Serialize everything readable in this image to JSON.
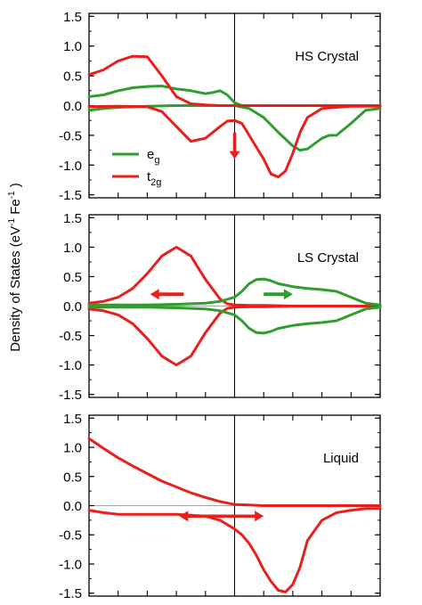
{
  "ylabel_parts": {
    "lead": "Density of States (eV",
    "exp1": "-1",
    "mid": " Fe",
    "exp2": "-1",
    "tail": ")"
  },
  "colors": {
    "eg": "#2f9e2f",
    "t2g": "#e8201c",
    "axis": "#000000"
  },
  "legend": {
    "panel": 0,
    "entries": [
      {
        "key": "eg",
        "base": "e",
        "sub": "g"
      },
      {
        "key": "t2g",
        "base": "t",
        "sub": "2g"
      }
    ]
  },
  "chart_data": [
    {
      "type": "line",
      "title": "HS Crystal",
      "ylim": [
        -1.55,
        1.55
      ],
      "yticks": [
        1.5,
        1.0,
        0.5,
        0.0,
        -0.5,
        -1.0,
        -1.5
      ],
      "ytick_labels": [
        "1.5",
        "1.0",
        "0.5",
        "0.0",
        "-0.5",
        "-1.0",
        "-1.5"
      ],
      "xlim": [
        -10,
        10
      ],
      "vline_x": 0,
      "series": [
        {
          "name": "eg",
          "color_key": "eg",
          "x": [
            -10,
            -9,
            -8,
            -7,
            -6,
            -5,
            -4,
            -3,
            -2,
            -1.5,
            -1,
            -0.5,
            0,
            0.5,
            1,
            2,
            3,
            4,
            5,
            5.5,
            6,
            7,
            8,
            9,
            10
          ],
          "y": [
            0.15,
            0.18,
            0.25,
            0.3,
            0.32,
            0.33,
            0.28,
            0.25,
            0.2,
            0.22,
            0.25,
            0.18,
            0.05,
            0,
            0,
            0,
            0,
            0,
            0,
            0,
            0,
            0,
            0,
            0,
            0
          ]
        },
        {
          "name": "eg",
          "color_key": "eg",
          "x": [
            -10,
            -9,
            -8,
            -6,
            -4,
            -2,
            0,
            1,
            2,
            3,
            4,
            4.5,
            5,
            6,
            6.5,
            7,
            8,
            9,
            10
          ],
          "y": [
            -0.08,
            -0.05,
            -0.03,
            -0.01,
            0,
            0,
            0,
            -0.05,
            -0.2,
            -0.45,
            -0.68,
            -0.75,
            -0.73,
            -0.55,
            -0.5,
            -0.5,
            -0.3,
            -0.08,
            -0.05
          ]
        },
        {
          "name": "t2g",
          "color_key": "t2g",
          "x": [
            -10,
            -9,
            -8,
            -7,
            -6,
            -5,
            -4,
            -3,
            -2,
            -1,
            0,
            1,
            2,
            4,
            6,
            8,
            10
          ],
          "y": [
            0.52,
            0.6,
            0.75,
            0.83,
            0.82,
            0.5,
            0.15,
            0.03,
            0.01,
            0,
            0,
            0,
            0,
            0,
            0,
            0,
            0
          ]
        },
        {
          "name": "t2g",
          "color_key": "t2g",
          "x": [
            -10,
            -8,
            -6,
            -5,
            -4,
            -3,
            -2,
            -1,
            -0.5,
            0,
            0.5,
            1,
            2,
            2.5,
            3,
            3.5,
            4,
            4.5,
            5,
            6,
            8,
            10
          ],
          "y": [
            -0.02,
            -0.01,
            -0.02,
            -0.1,
            -0.35,
            -0.6,
            -0.55,
            -0.35,
            -0.26,
            -0.25,
            -0.3,
            -0.5,
            -0.9,
            -1.15,
            -1.2,
            -1.1,
            -0.8,
            -0.45,
            -0.2,
            -0.05,
            -0.01,
            -0.01
          ]
        }
      ]
    },
    {
      "type": "line",
      "title": "LS Crystal",
      "ylim": [
        -1.55,
        1.55
      ],
      "yticks": [
        1.5,
        1.0,
        0.5,
        0.0,
        -0.5,
        -1.0,
        -1.5
      ],
      "ytick_labels": [
        "1.5",
        "1.0",
        "0.5",
        "0.0",
        "-0.5",
        "-1.0",
        "-1.5"
      ],
      "xlim": [
        -10,
        10
      ],
      "vline_x": 0,
      "series": [
        {
          "name": "t2g",
          "color_key": "t2g",
          "x": [
            -10,
            -9,
            -8,
            -7,
            -6,
            -5,
            -4,
            -3,
            -2,
            -1,
            -0.5,
            0,
            1,
            2,
            4,
            6,
            8,
            10
          ],
          "y": [
            0.05,
            0.08,
            0.15,
            0.3,
            0.55,
            0.85,
            1.0,
            0.85,
            0.45,
            0.12,
            0.04,
            0.02,
            0.01,
            0.01,
            0,
            0,
            0,
            0
          ]
        },
        {
          "name": "t2g",
          "color_key": "t2g",
          "x": [
            -10,
            -9,
            -8,
            -7,
            -6,
            -5,
            -4,
            -3,
            -2,
            -1,
            -0.5,
            0,
            1,
            2,
            4,
            6,
            8,
            10
          ],
          "y": [
            -0.05,
            -0.08,
            -0.15,
            -0.3,
            -0.55,
            -0.85,
            -1.0,
            -0.85,
            -0.45,
            -0.12,
            -0.04,
            -0.02,
            -0.01,
            -0.01,
            0,
            0,
            0,
            0
          ]
        },
        {
          "name": "eg",
          "color_key": "eg",
          "x": [
            -10,
            -8,
            -6,
            -4,
            -2,
            -1,
            0,
            0.5,
            1,
            1.5,
            2,
            2.5,
            3,
            4,
            5,
            6,
            7,
            8,
            9,
            10
          ],
          "y": [
            0.02,
            0.02,
            0.02,
            0.03,
            0.05,
            0.08,
            0.15,
            0.25,
            0.38,
            0.45,
            0.46,
            0.43,
            0.38,
            0.33,
            0.3,
            0.28,
            0.25,
            0.15,
            0.05,
            0.02
          ]
        },
        {
          "name": "eg",
          "color_key": "eg",
          "x": [
            -10,
            -8,
            -6,
            -4,
            -2,
            -1,
            0,
            0.5,
            1,
            1.5,
            2,
            2.5,
            3,
            4,
            5,
            6,
            7,
            8,
            9,
            10
          ],
          "y": [
            -0.02,
            -0.02,
            -0.02,
            -0.03,
            -0.05,
            -0.08,
            -0.15,
            -0.25,
            -0.38,
            -0.45,
            -0.46,
            -0.43,
            -0.38,
            -0.33,
            -0.3,
            -0.28,
            -0.25,
            -0.15,
            -0.05,
            -0.02
          ]
        }
      ]
    },
    {
      "type": "line",
      "title": "Liquid",
      "ylim": [
        -1.55,
        1.55
      ],
      "yticks": [
        1.5,
        1.0,
        0.5,
        0.0,
        -0.5,
        -1.0,
        -1.5
      ],
      "ytick_labels": [
        "1.5",
        "1.0",
        "0.5",
        "0.0",
        "-0.5",
        "-1.0",
        "-1.5"
      ],
      "xlim": [
        -10,
        10
      ],
      "vline_x": 0,
      "series": [
        {
          "name": "t2g",
          "color_key": "t2g",
          "x": [
            -10,
            -9,
            -8,
            -7,
            -6,
            -5,
            -4,
            -3,
            -2,
            -1,
            0,
            1,
            2,
            4,
            6,
            8,
            10
          ],
          "y": [
            1.15,
            0.98,
            0.82,
            0.68,
            0.55,
            0.42,
            0.32,
            0.22,
            0.14,
            0.07,
            0.02,
            0.01,
            0,
            0,
            0,
            0,
            0
          ]
        },
        {
          "name": "t2g",
          "color_key": "t2g",
          "x": [
            -10,
            -9,
            -8,
            -6,
            -4,
            -2,
            -1,
            0,
            0.5,
            1,
            1.5,
            2,
            2.5,
            3,
            3.5,
            4,
            4.5,
            5,
            6,
            7,
            8,
            9,
            10
          ],
          "y": [
            -0.08,
            -0.12,
            -0.15,
            -0.15,
            -0.15,
            -0.18,
            -0.25,
            -0.4,
            -0.5,
            -0.65,
            -0.85,
            -1.1,
            -1.3,
            -1.45,
            -1.48,
            -1.35,
            -1.05,
            -0.6,
            -0.25,
            -0.12,
            -0.08,
            -0.05,
            -0.05
          ]
        }
      ]
    }
  ],
  "annotations": [
    {
      "panel": 0,
      "kind": "arrow-down",
      "x": 0,
      "y_from": -0.45,
      "y_to": -0.9,
      "color_key": "t2g"
    },
    {
      "panel": 1,
      "kind": "arrow-left",
      "y": 0.2,
      "x_from": -3.5,
      "x_to": -5.8,
      "color_key": "t2g"
    },
    {
      "panel": 1,
      "kind": "arrow-right",
      "y": 0.2,
      "x_from": 2.0,
      "x_to": 4.0,
      "color_key": "eg"
    },
    {
      "panel": 2,
      "kind": "arrow-both",
      "y": -0.18,
      "x_from": -3.8,
      "x_to": 2.0,
      "color_key": "t2g"
    }
  ]
}
